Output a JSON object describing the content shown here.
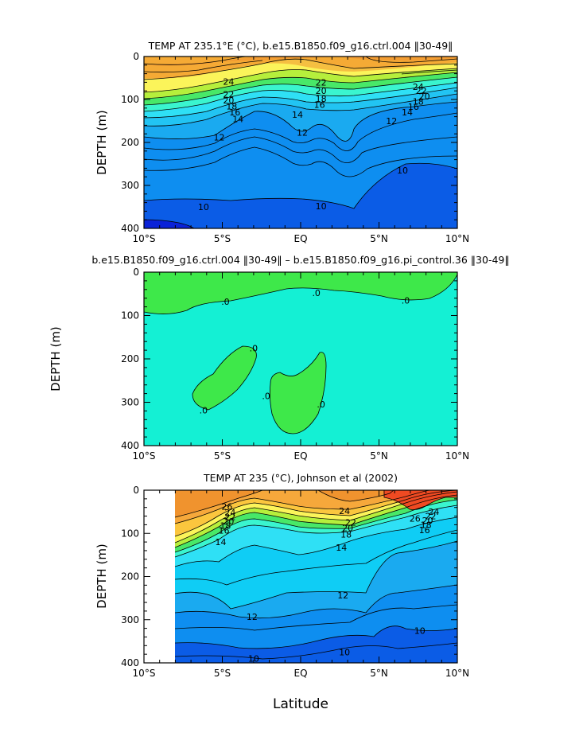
{
  "x_axis_label": "Latitude",
  "chart_data": [
    {
      "type": "heatmap",
      "title": "TEMP AT 235.1°E (°C), b.e15.B1850.f09_g16.ctrl.004 ‖30-49‖",
      "xlabel": "",
      "ylabel": "DEPTH (m)",
      "xlim": [
        -10,
        10
      ],
      "ylim": [
        400,
        0
      ],
      "x_ticks": [
        "10°S",
        "5°S",
        "EQ",
        "5°N",
        "10°N"
      ],
      "y_ticks": [
        "0",
        "100",
        "200",
        "300",
        "400"
      ],
      "contour_labels": [
        {
          "text": "24",
          "x": -4.6,
          "y": 58
        },
        {
          "text": "22",
          "x": -4.6,
          "y": 88
        },
        {
          "text": "20",
          "x": -4.6,
          "y": 102
        },
        {
          "text": "18",
          "x": -4.4,
          "y": 116
        },
        {
          "text": "16",
          "x": -4.2,
          "y": 130
        },
        {
          "text": "14",
          "x": -4.0,
          "y": 145
        },
        {
          "text": "12",
          "x": -5.2,
          "y": 188
        },
        {
          "text": "22",
          "x": 1.3,
          "y": 60
        },
        {
          "text": "20",
          "x": 1.3,
          "y": 80
        },
        {
          "text": "18",
          "x": 1.3,
          "y": 98
        },
        {
          "text": "16",
          "x": 1.2,
          "y": 112
        },
        {
          "text": "14",
          "x": -0.2,
          "y": 135
        },
        {
          "text": "12",
          "x": 0.1,
          "y": 177
        },
        {
          "text": "24",
          "x": 7.5,
          "y": 70
        },
        {
          "text": "22",
          "x": 7.7,
          "y": 80
        },
        {
          "text": "20",
          "x": 7.9,
          "y": 93
        },
        {
          "text": "18",
          "x": 7.5,
          "y": 105
        },
        {
          "text": "16",
          "x": 7.2,
          "y": 117
        },
        {
          "text": "14",
          "x": 6.8,
          "y": 130
        },
        {
          "text": "12",
          "x": 5.8,
          "y": 150
        },
        {
          "text": "10",
          "x": 6.5,
          "y": 265
        },
        {
          "text": "10",
          "x": -6.2,
          "y": 350
        },
        {
          "text": "10",
          "x": 1.3,
          "y": 348
        }
      ]
    },
    {
      "type": "heatmap",
      "title": "b.e15.B1850.f09_g16.ctrl.004 ‖30-49‖ – b.e15.B1850.f09_g16.pi_control.36 ‖30-49‖",
      "xlabel": "",
      "ylabel": "DEPTH (m)",
      "xlim": [
        -10,
        10
      ],
      "ylim": [
        400,
        0
      ],
      "x_ticks": [
        "10°S",
        "5°S",
        "EQ",
        "5°N",
        "10°N"
      ],
      "y_ticks": [
        "0",
        "100",
        "200",
        "300",
        "400"
      ],
      "contour_labels": [
        {
          "text": ".0",
          "x": -4.8,
          "y": 68
        },
        {
          "text": ".0",
          "x": 1.0,
          "y": 48
        },
        {
          "text": ".0",
          "x": 6.7,
          "y": 65
        },
        {
          "text": ".0",
          "x": -3.0,
          "y": 175
        },
        {
          "text": ".0",
          "x": -6.2,
          "y": 318
        },
        {
          "text": ".0",
          "x": -2.2,
          "y": 285
        },
        {
          "text": ".0",
          "x": 1.3,
          "y": 305
        }
      ]
    },
    {
      "type": "heatmap",
      "title": "TEMP AT 235 (°C), Johnson et al (2002)",
      "xlabel": "Latitude",
      "ylabel": "DEPTH (m)",
      "xlim": [
        -10,
        10
      ],
      "ylim": [
        400,
        0
      ],
      "x_ticks": [
        "10°S",
        "5°S",
        "EQ",
        "5°N",
        "10°N"
      ],
      "y_ticks": [
        "0",
        "100",
        "200",
        "300",
        "400"
      ],
      "contour_labels": [
        {
          "text": "26",
          "x": -4.7,
          "y": 38
        },
        {
          "text": "24",
          "x": -4.5,
          "y": 52
        },
        {
          "text": "22",
          "x": -4.5,
          "y": 62
        },
        {
          "text": "20",
          "x": -4.6,
          "y": 72
        },
        {
          "text": "18",
          "x": -4.8,
          "y": 82
        },
        {
          "text": "16",
          "x": -4.9,
          "y": 93
        },
        {
          "text": "14",
          "x": -5.1,
          "y": 120
        },
        {
          "text": "24",
          "x": 2.8,
          "y": 48
        },
        {
          "text": "22",
          "x": 3.2,
          "y": 75
        },
        {
          "text": "20",
          "x": 3.0,
          "y": 88
        },
        {
          "text": "18",
          "x": 2.9,
          "y": 102
        },
        {
          "text": "14",
          "x": 2.6,
          "y": 133
        },
        {
          "text": "26",
          "x": 7.3,
          "y": 65
        },
        {
          "text": "24",
          "x": 8.5,
          "y": 50
        },
        {
          "text": "22",
          "x": 8.3,
          "y": 60
        },
        {
          "text": "20",
          "x": 8.1,
          "y": 70
        },
        {
          "text": "18",
          "x": 8.0,
          "y": 80
        },
        {
          "text": "16",
          "x": 7.9,
          "y": 92
        },
        {
          "text": "12",
          "x": 2.7,
          "y": 243
        },
        {
          "text": "12",
          "x": -3.1,
          "y": 293
        },
        {
          "text": "10",
          "x": 7.6,
          "y": 325
        },
        {
          "text": "10",
          "x": 2.8,
          "y": 375
        },
        {
          "text": "10",
          "x": -3.0,
          "y": 390
        }
      ]
    }
  ]
}
